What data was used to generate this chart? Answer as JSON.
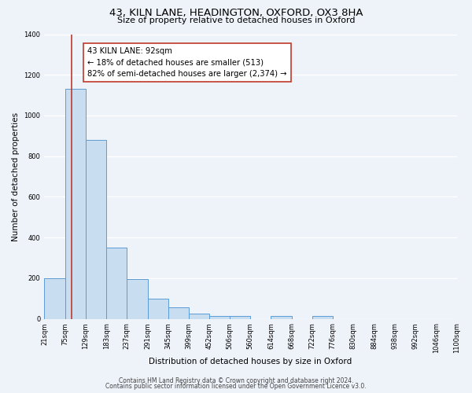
{
  "title": "43, KILN LANE, HEADINGTON, OXFORD, OX3 8HA",
  "subtitle": "Size of property relative to detached houses in Oxford",
  "xlabel": "Distribution of detached houses by size in Oxford",
  "ylabel": "Number of detached properties",
  "bin_edges": [
    21,
    75,
    129,
    183,
    237,
    291,
    345,
    399,
    452,
    506,
    560,
    614,
    668,
    722,
    776,
    830,
    884,
    938,
    992,
    1046,
    1100
  ],
  "bin_heights": [
    200,
    1130,
    880,
    350,
    195,
    100,
    55,
    25,
    15,
    15,
    0,
    15,
    0,
    15,
    0,
    0,
    0,
    0,
    0,
    0
  ],
  "tick_labels": [
    "21sqm",
    "75sqm",
    "129sqm",
    "183sqm",
    "237sqm",
    "291sqm",
    "345sqm",
    "399sqm",
    "452sqm",
    "506sqm",
    "560sqm",
    "614sqm",
    "668sqm",
    "722sqm",
    "776sqm",
    "830sqm",
    "884sqm",
    "938sqm",
    "992sqm",
    "1046sqm",
    "1100sqm"
  ],
  "bar_color": "#c9ddf0",
  "bar_edge_color": "#5b9bd5",
  "vline_x": 92,
  "vline_color": "#c0392b",
  "annotation_text": "43 KILN LANE: 92sqm\n← 18% of detached houses are smaller (513)\n82% of semi-detached houses are larger (2,374) →",
  "annotation_box_color": "white",
  "annotation_box_edgecolor": "#c0392b",
  "ylim": [
    0,
    1400
  ],
  "yticks": [
    0,
    200,
    400,
    600,
    800,
    1000,
    1200,
    1400
  ],
  "footer_line1": "Contains HM Land Registry data © Crown copyright and database right 2024.",
  "footer_line2": "Contains public sector information licensed under the Open Government Licence v3.0.",
  "background_color": "#eef2f9",
  "grid_color": "white",
  "title_fontsize": 9.5,
  "subtitle_fontsize": 8.0,
  "axis_label_fontsize": 7.5,
  "tick_fontsize": 6.0,
  "annotation_fontsize": 7.2,
  "footer_fontsize": 5.5
}
